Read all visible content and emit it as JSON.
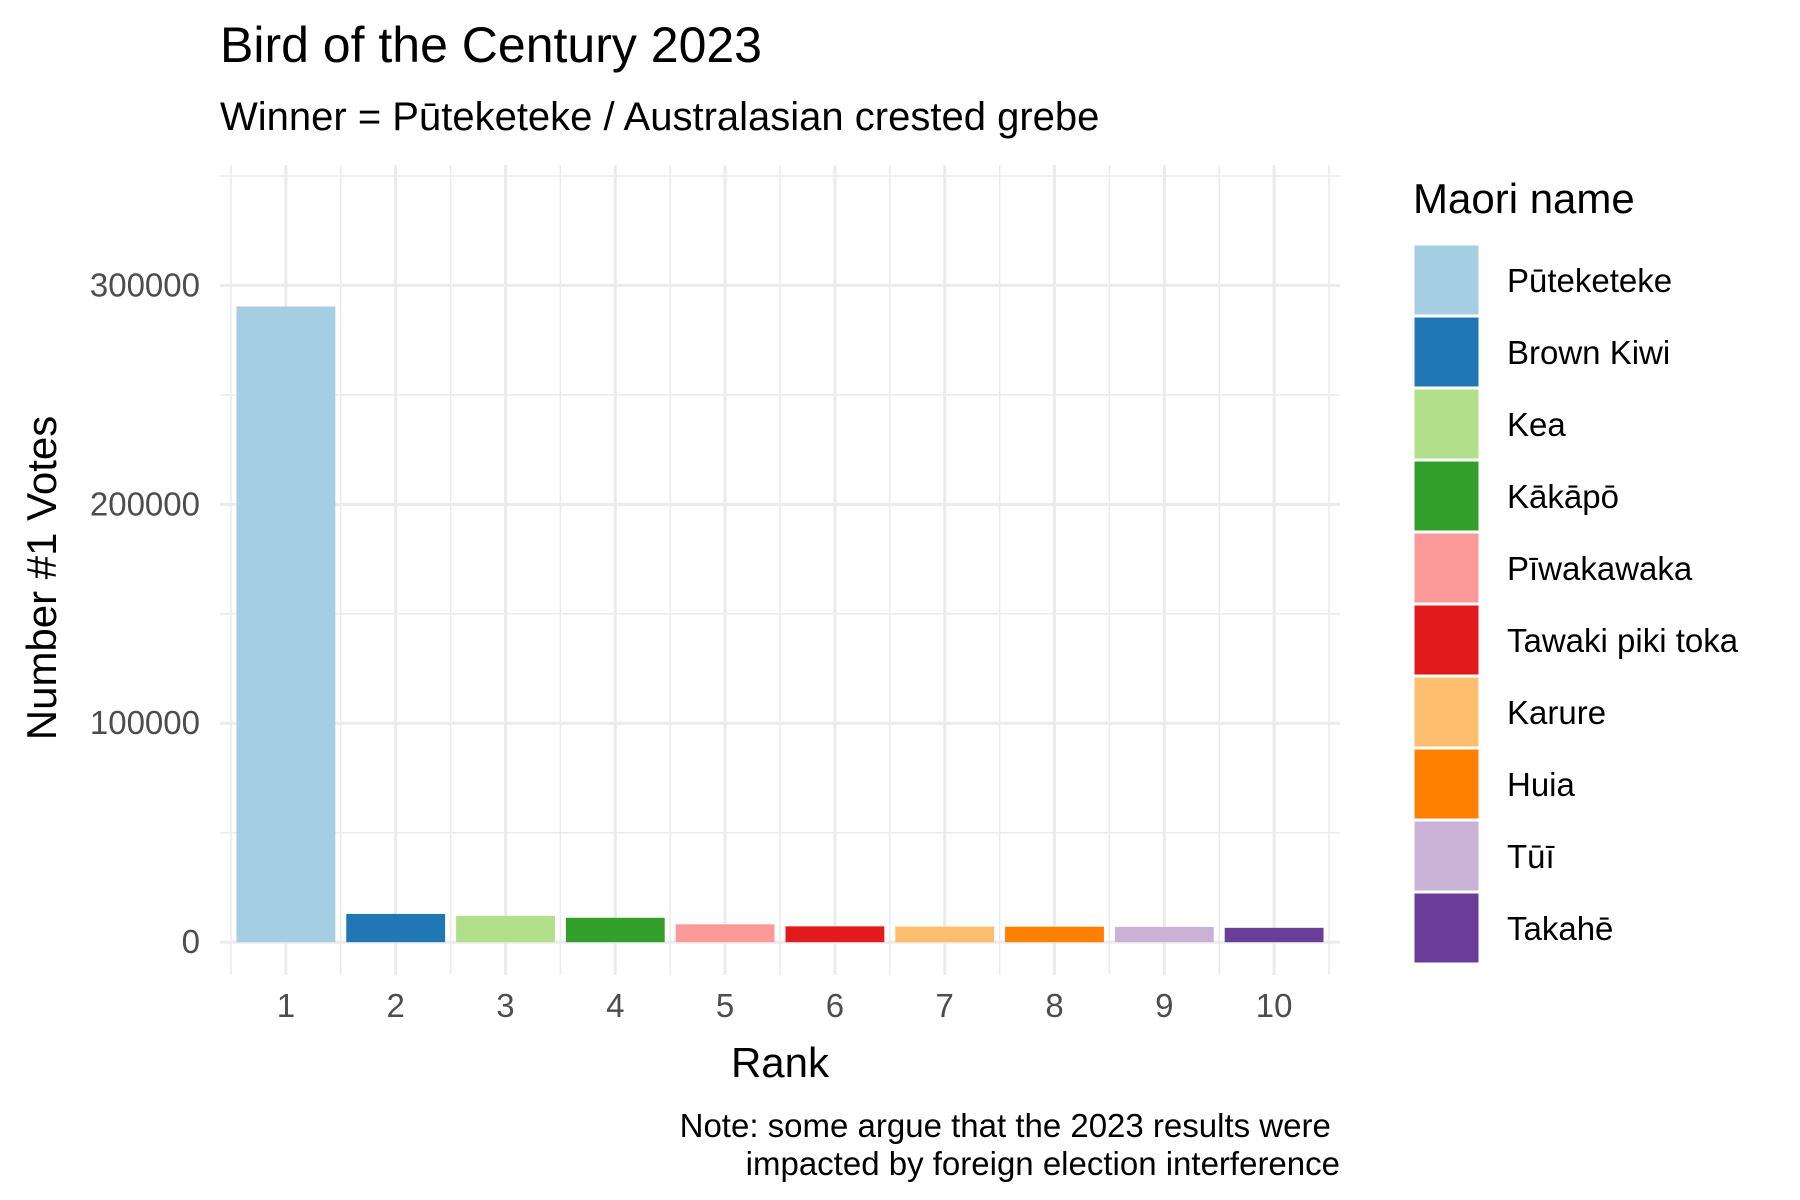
{
  "chart_data": {
    "type": "bar",
    "title": "Bird of the Century 2023",
    "subtitle": "Winner = Pūteketeke / Australasian crested grebe",
    "xlabel": "Rank",
    "ylabel": "Number #1 Votes",
    "caption": [
      "Note: some argue that the 2023 results were ",
      "impacted by foreign election interference"
    ],
    "categories": [
      "1",
      "2",
      "3",
      "4",
      "5",
      "6",
      "7",
      "8",
      "9",
      "10"
    ],
    "values": [
      290374,
      12904,
      12060,
      11131,
      8153,
      7220,
      7130,
      7063,
      6964,
      6552
    ],
    "series_names": [
      "Pūteketeke",
      "Brown Kiwi",
      "Kea",
      "Kākāpō",
      "Pīwakawaka",
      "Tawaki piki toka",
      "Karure",
      "Huia",
      "Tūī",
      "Takahē"
    ],
    "colors": [
      "#a6cee3",
      "#1f78b4",
      "#b2df8a",
      "#33a02c",
      "#fb9a99",
      "#e31a1c",
      "#fdbf6f",
      "#ff7f00",
      "#cab2d6",
      "#6a3d9a"
    ],
    "yticks": [
      0,
      100000,
      200000,
      300000
    ],
    "ytick_labels": [
      "0",
      "100000",
      "200000",
      "300000"
    ],
    "ylim": [
      -15000,
      355000
    ],
    "legend": {
      "title": "Maori name",
      "position": "right"
    },
    "grid": true
  }
}
